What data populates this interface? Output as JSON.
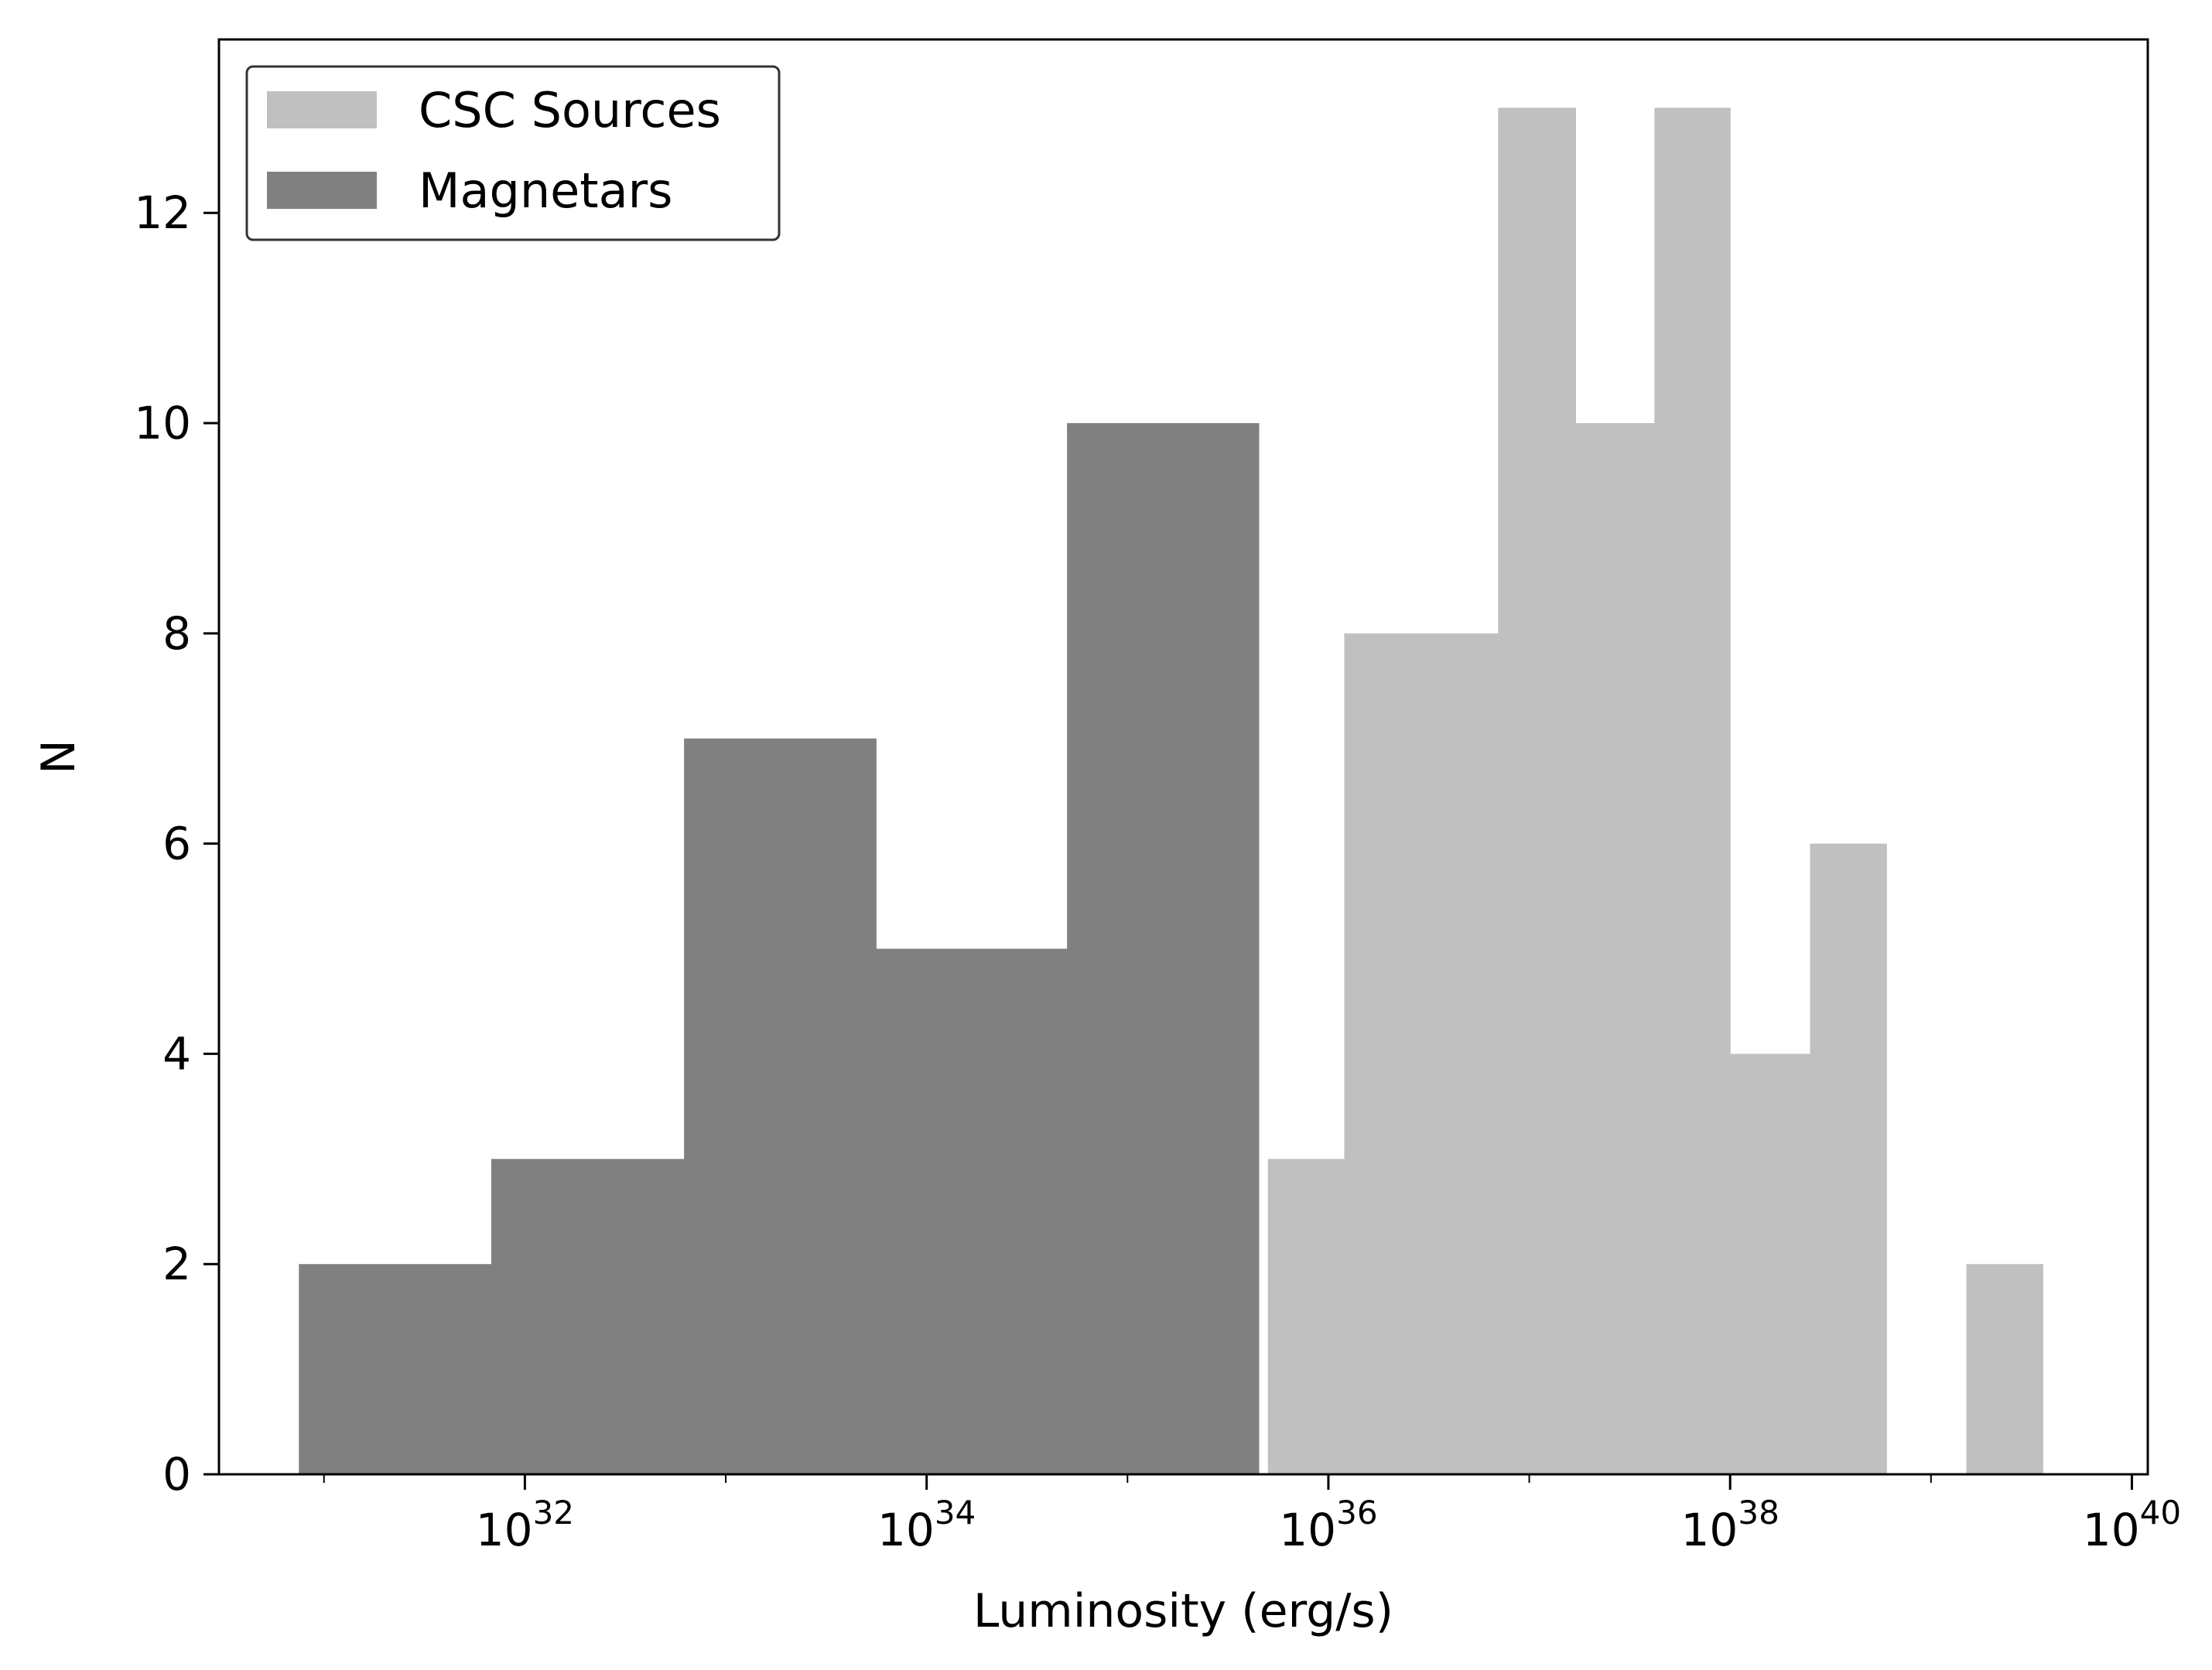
{
  "chart_data": {
    "type": "bar",
    "title": "",
    "xlabel": "Luminosity (erg/s)",
    "ylabel": "N",
    "x_scale": "log",
    "xlim": [
      3e+30,
      1.2e+40
    ],
    "ylim": [
      0,
      13.65
    ],
    "x_ticks": [
      {
        "exponent": "32",
        "value": 1e+32
      },
      {
        "exponent": "34",
        "value": 1e+34
      },
      {
        "exponent": "36",
        "value": 1e+36
      },
      {
        "exponent": "38",
        "value": 1e+38
      },
      {
        "exponent": "40",
        "value": 1e+40
      }
    ],
    "y_ticks": [
      0,
      2,
      4,
      6,
      8,
      10,
      12
    ],
    "grid": false,
    "legend_position": "upper-left",
    "series": [
      {
        "name": "CSC Sources",
        "color": "#c0c0c0",
        "bins": [
          {
            "x0": 5e+35,
            "x1": 1.2e+36,
            "count": 3
          },
          {
            "x0": 1.2e+36,
            "x1": 7e+36,
            "count": 8
          },
          {
            "x0": 7e+36,
            "x1": 1.7e+37,
            "count": 13
          },
          {
            "x0": 1.7e+37,
            "x1": 4.2e+37,
            "count": 10
          },
          {
            "x0": 4.2e+37,
            "x1": 1e+38,
            "count": 13
          },
          {
            "x0": 1e+38,
            "x1": 2.5e+38,
            "count": 4
          },
          {
            "x0": 2.5e+38,
            "x1": 6e+38,
            "count": 6
          },
          {
            "x0": 6e+38,
            "x1": 1.5e+39,
            "count": 0
          },
          {
            "x0": 1.5e+39,
            "x1": 3.6e+39,
            "count": 2
          }
        ]
      },
      {
        "name": "Magnetars",
        "color": "#808080",
        "bins": [
          {
            "x0": 7.5e+30,
            "x1": 6.8e+31,
            "count": 2
          },
          {
            "x0": 6.8e+31,
            "x1": 6.2e+32,
            "count": 3
          },
          {
            "x0": 6.2e+32,
            "x1": 5.6e+33,
            "count": 7
          },
          {
            "x0": 5.6e+33,
            "x1": 5e+34,
            "count": 5
          },
          {
            "x0": 5e+34,
            "x1": 4.5e+35,
            "count": 10
          }
        ]
      }
    ]
  }
}
